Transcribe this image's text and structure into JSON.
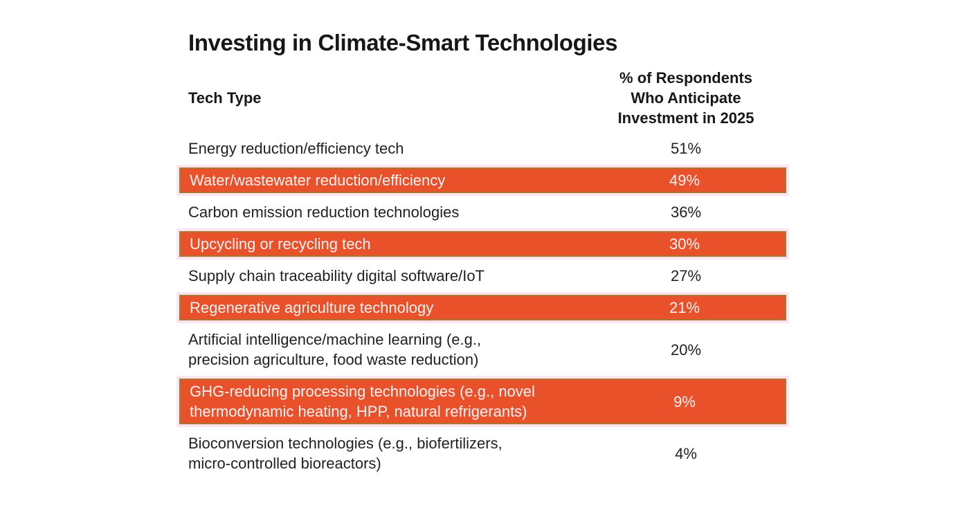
{
  "title": "Investing in Climate-Smart Technologies",
  "header": {
    "tech_label": "Tech Type",
    "percent_label": "% of Respondents\nWho Anticipate\nInvestment in 2025"
  },
  "table": {
    "rows": [
      {
        "tech": "Energy reduction/efficiency tech",
        "percent": "51%",
        "highlighted": false
      },
      {
        "tech": "Water/wastewater reduction/efficiency",
        "percent": "49%",
        "highlighted": true
      },
      {
        "tech": "Carbon emission reduction technologies",
        "percent": "36%",
        "highlighted": false
      },
      {
        "tech": "Upcycling or recycling tech",
        "percent": "30%",
        "highlighted": true
      },
      {
        "tech": "Supply chain traceability digital software/IoT",
        "percent": "27%",
        "highlighted": false
      },
      {
        "tech": "Regenerative agriculture technology",
        "percent": "21%",
        "highlighted": true
      },
      {
        "tech": "Artificial intelligence/machine learning (e.g.,\nprecision agriculture, food waste reduction)",
        "percent": "20%",
        "highlighted": false
      },
      {
        "tech": "GHG-reducing processing technologies (e.g., novel\nthermodynamic heating, HPP, natural refrigerants)",
        "percent": "9%",
        "highlighted": true
      },
      {
        "tech": "Bioconversion technologies (e.g., biofertilizers,\nmicro-controlled bioreactors)",
        "percent": "4%",
        "highlighted": false
      }
    ]
  },
  "colors": {
    "highlight_fill": "#E9512B",
    "highlight_border": "#A8762F",
    "highlight_glow": "#FFE3EF",
    "highlight_text": "#FBF2F4",
    "text": "#1C1C1C",
    "background": "#FFFFFF"
  },
  "chart_data": {
    "type": "table",
    "title": "Investing in Climate-Smart Technologies",
    "columns": [
      "Tech Type",
      "% of Respondents Who Anticipate Investment in 2025"
    ],
    "categories": [
      "Energy reduction/efficiency tech",
      "Water/wastewater reduction/efficiency",
      "Carbon emission reduction technologies",
      "Upcycling or recycling tech",
      "Supply chain traceability digital software/IoT",
      "Regenerative agriculture technology",
      "Artificial intelligence/machine learning (e.g., precision agriculture, food waste reduction)",
      "GHG-reducing processing technologies (e.g., novel thermodynamic heating, HPP, natural refrigerants)",
      "Bioconversion technologies (e.g., biofertilizers, micro-controlled bioreactors)"
    ],
    "values": [
      51,
      49,
      36,
      30,
      27,
      21,
      20,
      9,
      4
    ],
    "unit": "%",
    "highlighted_row_indices": [
      1,
      3,
      5,
      7
    ],
    "layout": "two-column table, percentages center-aligned, alternating orange highlight bands"
  }
}
